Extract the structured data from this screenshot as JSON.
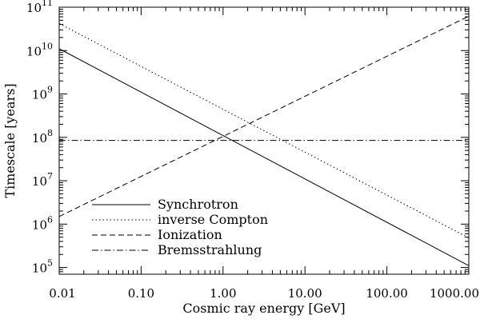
{
  "chart_data": {
    "type": "line",
    "xlabel": "Cosmic ray energy [GeV]",
    "ylabel": "Timescale [years]",
    "x_scale": "log",
    "y_scale": "log",
    "xlim": [
      0.01,
      1000
    ],
    "ylim": [
      70000,
      100000000000
    ],
    "x_ticks": [
      {
        "value": 0.01,
        "label": "0.01"
      },
      {
        "value": 0.1,
        "label": "0.10"
      },
      {
        "value": 1,
        "label": "1.00"
      },
      {
        "value": 10,
        "label": "10.00"
      },
      {
        "value": 100,
        "label": "100.00"
      },
      {
        "value": 1000,
        "label": "1000.00"
      }
    ],
    "y_ticks": [
      {
        "value": 100000,
        "base": "10",
        "exp": "5"
      },
      {
        "value": 1000000,
        "base": "10",
        "exp": "6"
      },
      {
        "value": 10000000,
        "base": "10",
        "exp": "7"
      },
      {
        "value": 100000000,
        "base": "10",
        "exp": "8"
      },
      {
        "value": 1000000000,
        "base": "10",
        "exp": "9"
      },
      {
        "value": 10000000000,
        "base": "10",
        "exp": "10"
      },
      {
        "value": 100000000000,
        "base": "10",
        "exp": "11"
      }
    ],
    "grid": false,
    "legend_position": "bottom-left",
    "series": [
      {
        "name": "Synchrotron",
        "style": "solid",
        "x": [
          0.01,
          1000
        ],
        "y": [
          11000000000,
          110000
        ]
      },
      {
        "name": "inverse Compton",
        "style": "dotted",
        "x": [
          0.01,
          1000
        ],
        "y": [
          42000000000,
          480000
        ]
      },
      {
        "name": "Ionization",
        "style": "dashed",
        "x": [
          0.01,
          1000
        ],
        "y": [
          1500000,
          62000000000
        ]
      },
      {
        "name": "Bremsstrahlung",
        "style": "dashdot",
        "x": [
          0.01,
          1000
        ],
        "y": [
          85000000,
          85000000
        ]
      }
    ]
  }
}
